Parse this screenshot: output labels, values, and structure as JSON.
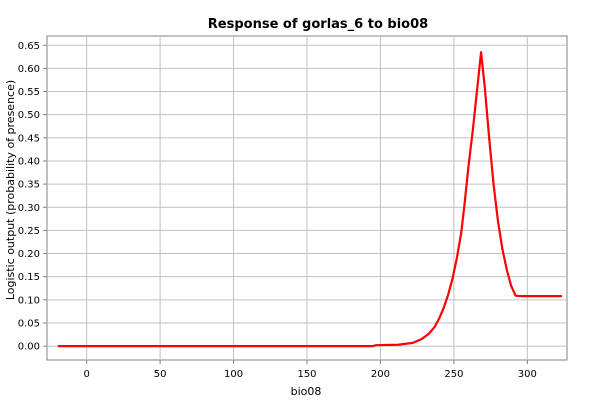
{
  "chart_data": {
    "type": "line",
    "title": "Response of gorlas_6 to bio08",
    "xlabel": "bio08",
    "ylabel": "Logistic output (probability of presence)",
    "xlim": [
      -27,
      327
    ],
    "ylim": [
      -0.03,
      0.67
    ],
    "x_ticks": [
      0,
      50,
      100,
      150,
      200,
      250,
      300
    ],
    "y_ticks": [
      0.0,
      0.05,
      0.1,
      0.15,
      0.2,
      0.25,
      0.3,
      0.35,
      0.4,
      0.45,
      0.5,
      0.55,
      0.6,
      0.65
    ],
    "y_tick_labels": [
      "0.00",
      "0.05",
      "0.10",
      "0.15",
      "0.20",
      "0.25",
      "0.30",
      "0.35",
      "0.40",
      "0.45",
      "0.50",
      "0.55",
      "0.60",
      "0.65"
    ],
    "grid": true,
    "series": [
      {
        "color": "#ff0000",
        "x": [
          -19,
          0,
          50,
          100,
          150,
          195,
          197,
          212,
          222,
          228,
          233,
          237,
          240,
          243,
          246,
          249,
          252,
          255,
          257,
          260,
          263,
          266,
          268.5,
          271,
          274,
          277,
          280,
          283,
          286,
          289,
          292,
          295,
          300,
          323
        ],
        "y": [
          0.0,
          0.0,
          0.0,
          0.0,
          0.0,
          0.0,
          0.002,
          0.003,
          0.007,
          0.015,
          0.027,
          0.042,
          0.06,
          0.082,
          0.11,
          0.145,
          0.19,
          0.245,
          0.3,
          0.39,
          0.47,
          0.56,
          0.635,
          0.56,
          0.45,
          0.35,
          0.27,
          0.21,
          0.165,
          0.13,
          0.109,
          0.108,
          0.108,
          0.108
        ]
      }
    ]
  }
}
